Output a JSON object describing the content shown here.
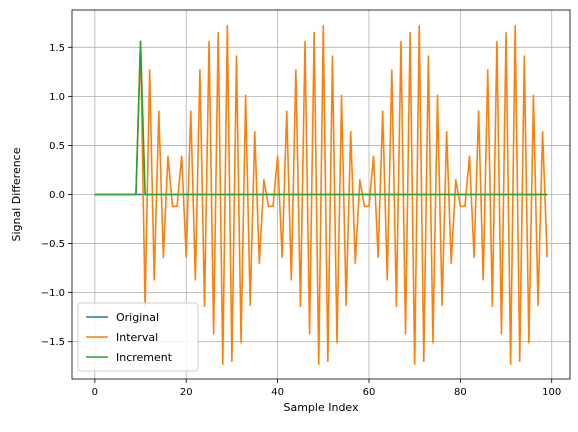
{
  "chart_data": {
    "type": "line",
    "xlabel": "Sample Index",
    "ylabel": "Signal Difference",
    "xlim": [
      -5,
      104
    ],
    "ylim": [
      -1.88,
      1.88
    ],
    "x_ticks": [
      0,
      20,
      40,
      60,
      80,
      100
    ],
    "y_ticks": [
      -1.5,
      -1.0,
      -0.5,
      0.0,
      0.5,
      1.0,
      1.5
    ],
    "x_tick_labels": [
      "0",
      "20",
      "40",
      "60",
      "80",
      "100"
    ],
    "y_tick_labels": [
      "−1.5",
      "−1.0",
      "−0.5",
      "0.0",
      "0.5",
      "1.0",
      "1.5"
    ],
    "grid": true,
    "legend": "lower-left",
    "series": [
      {
        "name": "Original",
        "color": "#1f77b4",
        "x": [
          0,
          99
        ],
        "y": [
          0.0,
          0.0
        ]
      },
      {
        "name": "Interval",
        "color": "#ff7f0e",
        "x": [
          0,
          1,
          2,
          3,
          4,
          5,
          6,
          7,
          8,
          9,
          10,
          11,
          12,
          13,
          14,
          15,
          16,
          17,
          18,
          19,
          20,
          21,
          22,
          23,
          24,
          25,
          26,
          27,
          28,
          29,
          30,
          31,
          32,
          33,
          34,
          35,
          36,
          37,
          38,
          39,
          40,
          41,
          42,
          43,
          44,
          45,
          46,
          47,
          48,
          49,
          50,
          51,
          52,
          53,
          54,
          55,
          56,
          57,
          58,
          59,
          60,
          61,
          62,
          63,
          64,
          65,
          66,
          67,
          68,
          69,
          70,
          71,
          72,
          73,
          74,
          75,
          76,
          77,
          78,
          79,
          80,
          81,
          82,
          83,
          84,
          85,
          86,
          87,
          88,
          89,
          90,
          91,
          92,
          93,
          94,
          95,
          96,
          97,
          98,
          99
        ],
        "y": [
          0.0,
          0.0,
          0.0,
          0.0,
          0.0,
          0.0,
          0.0,
          0.0,
          0.0,
          0.0,
          1.56,
          -1.14,
          1.27,
          -0.87,
          0.85,
          -0.64,
          0.39,
          -0.12,
          -0.12,
          0.39,
          -0.64,
          0.85,
          -0.87,
          1.27,
          -1.14,
          1.56,
          -1.42,
          1.65,
          -1.73,
          1.72,
          -1.7,
          1.41,
          -1.51,
          1.01,
          -1.13,
          0.64,
          -0.7,
          0.15,
          -0.12,
          -0.12,
          0.39,
          -0.64,
          0.85,
          -0.87,
          1.27,
          -1.14,
          1.56,
          -1.42,
          1.65,
          -1.73,
          1.72,
          -1.7,
          1.41,
          -1.51,
          1.01,
          -1.13,
          0.64,
          -0.7,
          0.15,
          -0.12,
          -0.12,
          0.39,
          -0.64,
          0.85,
          -0.87,
          1.27,
          -1.14,
          1.56,
          -1.42,
          1.65,
          -1.73,
          1.72,
          -1.7,
          1.41,
          -1.51,
          1.01,
          -1.13,
          0.64,
          -0.7,
          0.15,
          -0.12,
          -0.12,
          0.39,
          -0.64,
          0.85,
          -0.87,
          1.27,
          -1.14,
          1.56,
          -1.42,
          1.65,
          -1.73,
          1.72,
          -1.7,
          1.41,
          -1.51,
          1.01,
          -1.13,
          0.64,
          -0.64
        ]
      },
      {
        "name": "Increment",
        "color": "#2ca02c",
        "x": [
          0,
          9,
          10,
          11,
          99
        ],
        "y": [
          0.0,
          0.0,
          1.56,
          0.0,
          0.0
        ]
      }
    ]
  }
}
